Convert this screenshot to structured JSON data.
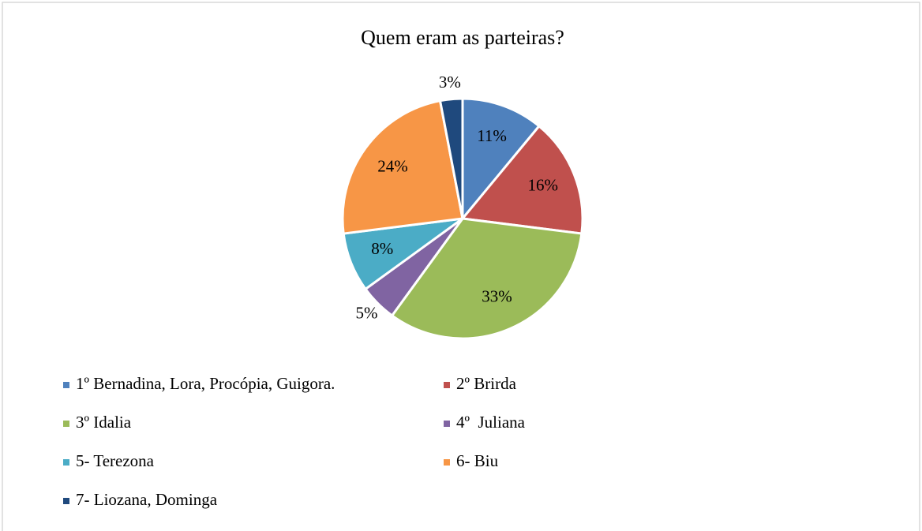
{
  "chart_data": {
    "type": "pie",
    "title": "Quem eram as parteiras?",
    "categories": [
      "1º Bernadina, Lora, Procópia, Guigora.",
      "2º Brirda",
      "3º Idalia",
      "4º  Juliana",
      "5- Terezona",
      "6- Biu",
      "7- Liozana, Dominga"
    ],
    "values": [
      11,
      16,
      33,
      5,
      8,
      24,
      3
    ],
    "value_labels": [
      "11%",
      "16%",
      "33%",
      "5%",
      "8%",
      "24%",
      "3%"
    ],
    "colors": [
      "#4f81bd",
      "#c0504d",
      "#9bbb59",
      "#8064a2",
      "#4bacc6",
      "#f79646",
      "#1f497d"
    ],
    "legend": "bottom"
  }
}
